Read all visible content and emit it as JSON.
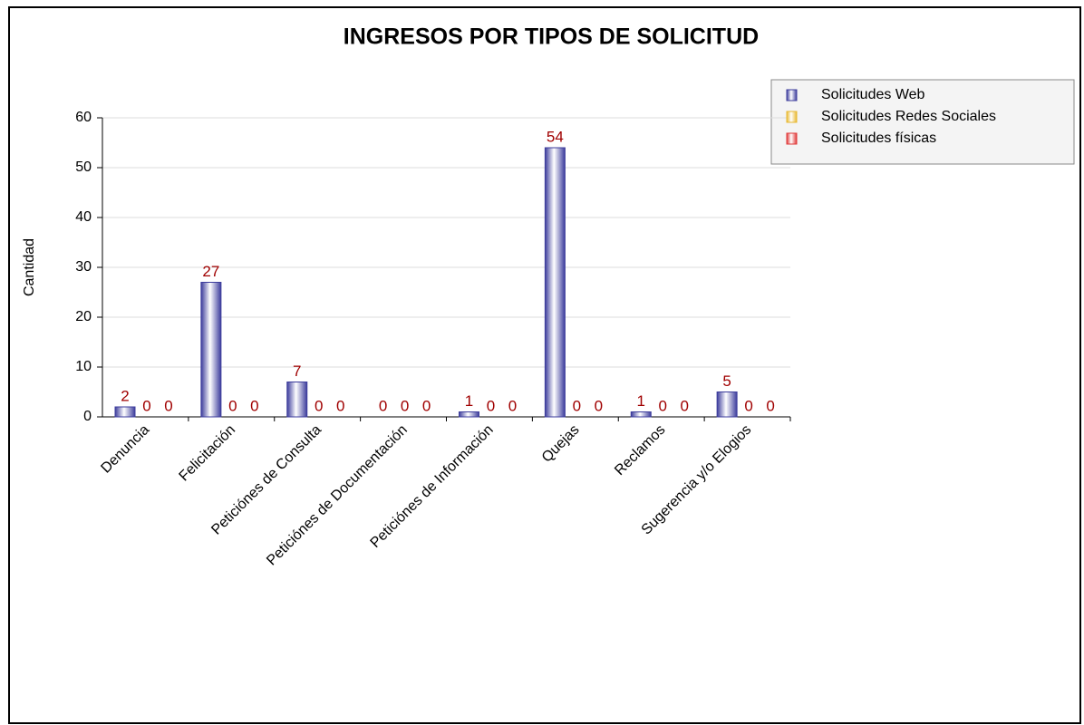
{
  "chart_data": {
    "type": "bar",
    "title": "INGRESOS POR TIPOS DE SOLICITUD",
    "y_label": "Cantidad",
    "categories": [
      "Denuncia",
      "Felicitación",
      "Peticiónes de Consulta",
      "Peticiónes de Documentación",
      "Peticiónes de Información",
      "Quejas",
      "Reclamos",
      "Sugerencia y/o Elogios"
    ],
    "series": [
      {
        "name": "Solicitudes Web",
        "color": "#3c3c9c",
        "values": [
          2,
          27,
          7,
          0,
          1,
          54,
          1,
          5
        ]
      },
      {
        "name": "Solicitudes Redes Sociales",
        "color": "#e8b830",
        "values": [
          0,
          0,
          0,
          0,
          0,
          0,
          0,
          0
        ]
      },
      {
        "name": "Solicitudes físicas",
        "color": "#e03838",
        "values": [
          0,
          0,
          0,
          0,
          0,
          0,
          0,
          0
        ]
      }
    ],
    "ylim": [
      0,
      60
    ],
    "yticks": [
      0,
      10,
      20,
      30,
      40,
      50,
      60
    ],
    "grid": true,
    "legend": "top-right"
  }
}
